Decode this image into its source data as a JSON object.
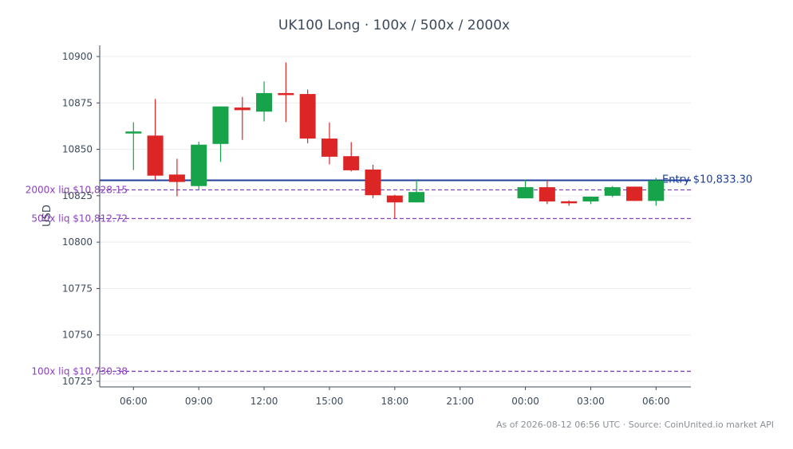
{
  "chart_data": {
    "type": "candlestick",
    "title": "UK100 Long · 100x / 500x / 2000x",
    "ylabel": "USD",
    "ylim": [
      10722,
      10906
    ],
    "yticks": [
      10725,
      10750,
      10775,
      10800,
      10825,
      10850,
      10875,
      10900
    ],
    "xticks": [
      {
        "label": "06:00",
        "hour": 6
      },
      {
        "label": "09:00",
        "hour": 9
      },
      {
        "label": "12:00",
        "hour": 12
      },
      {
        "label": "15:00",
        "hour": 15
      },
      {
        "label": "18:00",
        "hour": 18
      },
      {
        "label": "21:00",
        "hour": 21
      },
      {
        "label": "00:00",
        "hour": 24
      },
      {
        "label": "03:00",
        "hour": 27
      },
      {
        "label": "06:00",
        "hour": 30
      }
    ],
    "xlim": [
      4.45,
      31.6
    ],
    "candles": [
      {
        "hour": 6,
        "open": 10858.8,
        "high": 10864.6,
        "low": 10838.8,
        "close": 10859.6
      },
      {
        "hour": 7,
        "open": 10857.4,
        "high": 10877.1,
        "low": 10833.5,
        "close": 10835.8
      },
      {
        "hour": 8,
        "open": 10836.4,
        "high": 10844.9,
        "low": 10824.7,
        "close": 10832.4
      },
      {
        "hour": 9,
        "open": 10830.2,
        "high": 10854.1,
        "low": 10828.0,
        "close": 10852.5
      },
      {
        "hour": 10,
        "open": 10852.9,
        "high": 10873.1,
        "low": 10843.2,
        "close": 10873.1
      },
      {
        "hour": 11,
        "open": 10872.5,
        "high": 10878.2,
        "low": 10855.1,
        "close": 10871.1
      },
      {
        "hour": 12,
        "open": 10870.3,
        "high": 10886.6,
        "low": 10865.0,
        "close": 10880.3
      },
      {
        "hour": 13,
        "open": 10880.3,
        "high": 10896.8,
        "low": 10864.7,
        "close": 10879.6
      },
      {
        "hour": 14,
        "open": 10879.8,
        "high": 10882.2,
        "low": 10853.3,
        "close": 10855.8
      },
      {
        "hour": 15,
        "open": 10855.8,
        "high": 10864.5,
        "low": 10841.9,
        "close": 10846.0
      },
      {
        "hour": 16,
        "open": 10846.3,
        "high": 10853.9,
        "low": 10838.1,
        "close": 10838.7
      },
      {
        "hour": 17,
        "open": 10839.1,
        "high": 10841.7,
        "low": 10823.7,
        "close": 10825.3
      },
      {
        "hour": 18,
        "open": 10825.1,
        "high": 10825.5,
        "low": 10812.8,
        "close": 10821.4
      },
      {
        "hour": 19,
        "open": 10821.4,
        "high": 10833.5,
        "low": 10821.4,
        "close": 10827.0
      },
      {
        "hour": 24,
        "open": 10823.6,
        "high": 10833.5,
        "low": 10823.6,
        "close": 10829.6
      },
      {
        "hour": 25,
        "open": 10829.6,
        "high": 10833.5,
        "low": 10820.5,
        "close": 10821.9
      },
      {
        "hour": 26,
        "open": 10822.0,
        "high": 10822.5,
        "low": 10819.6,
        "close": 10821.8
      },
      {
        "hour": 27,
        "open": 10821.9,
        "high": 10824.6,
        "low": 10820.5,
        "close": 10824.5
      },
      {
        "hour": 28,
        "open": 10825.0,
        "high": 10830.2,
        "low": 10824.2,
        "close": 10829.6
      },
      {
        "hour": 29,
        "open": 10829.9,
        "high": 10829.9,
        "low": 10822.2,
        "close": 10822.2
      },
      {
        "hour": 30,
        "open": 10822.2,
        "high": 10834.6,
        "low": 10819.6,
        "close": 10833.2
      }
    ],
    "entry": {
      "price": 10833.3,
      "label": "Entry $10,833.30",
      "color": "#1f3f99"
    },
    "liquidations": [
      {
        "price": 10828.15,
        "label": "2000x liq $10,828.15"
      },
      {
        "price": 10812.72,
        "label": "500x liq $10,812.72"
      },
      {
        "price": 10730.38,
        "label": "100x liq $10,730.38"
      }
    ],
    "colors": {
      "up": "#16a34a",
      "down": "#dc2626",
      "liq": "#8b3fbf",
      "grid": "#ebebeb",
      "axis": "#3d4a5c"
    },
    "grid": true,
    "footer": "As of 2026-08-12 06:56 UTC · Source: CoinUnited.io market API"
  }
}
